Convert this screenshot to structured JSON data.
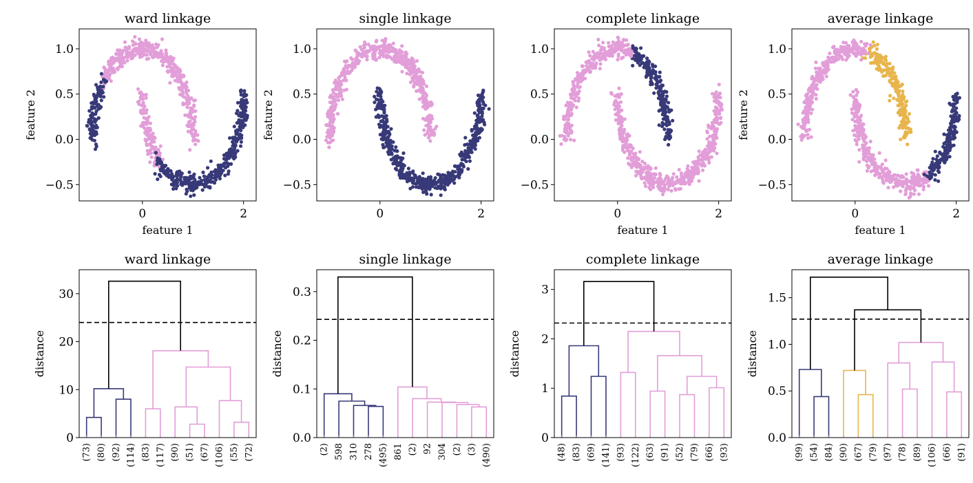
{
  "colors": {
    "navy": "#373978",
    "pink": "#e29ed8",
    "gold": "#e8b54d",
    "black": "#000000"
  },
  "chart_data": [
    {
      "type": "scatter",
      "title": "ward linkage",
      "xlabel": "feature 1",
      "ylabel": "feature 2",
      "xticks": [
        0,
        2
      ],
      "yticks": [
        -0.5,
        0.0,
        0.5,
        1.0
      ],
      "xtick_labels": [
        "0",
        "2"
      ],
      "ytick_labels": [
        "−0.5",
        "0.0",
        "0.5",
        "1.0"
      ],
      "xlim": [
        -1.25,
        2.25
      ],
      "ylim": [
        -0.68,
        1.22
      ],
      "dataset": "two interleaving half-moons",
      "clusters": [
        {
          "color": "pink",
          "segments": [
            {
              "moon": "upper",
              "t": [
                0.0,
                0.78
              ]
            },
            {
              "moon": "lower",
              "t": [
                0.0,
                0.26
              ]
            }
          ]
        },
        {
          "color": "navy",
          "segments": [
            {
              "moon": "upper",
              "t": [
                0.78,
                1.0
              ]
            },
            {
              "moon": "lower",
              "t": [
                0.26,
                1.0
              ]
            }
          ]
        }
      ]
    },
    {
      "type": "scatter",
      "title": "single linkage",
      "xlabel": "",
      "ylabel": "feature 2",
      "xticks": [
        0,
        2
      ],
      "yticks": [
        -0.5,
        0.0,
        0.5,
        1.0
      ],
      "xtick_labels": [
        "0",
        "2"
      ],
      "ytick_labels": [
        "−0.5",
        "0.0",
        "0.5",
        "1.0"
      ],
      "xlim": [
        -1.25,
        2.25
      ],
      "ylim": [
        -0.68,
        1.22
      ],
      "clusters": [
        {
          "color": "pink",
          "segments": [
            {
              "moon": "upper",
              "t": [
                0.0,
                1.0
              ]
            }
          ]
        },
        {
          "color": "navy",
          "segments": [
            {
              "moon": "lower",
              "t": [
                0.0,
                1.0
              ]
            }
          ]
        }
      ]
    },
    {
      "type": "scatter",
      "title": "complete linkage",
      "xlabel": "feature 1",
      "ylabel": "",
      "xticks": [
        0,
        2
      ],
      "yticks": [
        -0.5,
        0.0,
        0.5,
        1.0
      ],
      "xtick_labels": [
        "0",
        "2"
      ],
      "ytick_labels": [
        "−0.5",
        "0.0",
        "0.5",
        "1.0"
      ],
      "xlim": [
        -1.25,
        2.25
      ],
      "ylim": [
        -0.68,
        1.22
      ],
      "clusters": [
        {
          "color": "navy",
          "segments": [
            {
              "moon": "upper",
              "t": [
                0.0,
                0.42
              ]
            }
          ]
        },
        {
          "color": "pink",
          "segments": [
            {
              "moon": "upper",
              "t": [
                0.42,
                1.0
              ]
            },
            {
              "moon": "lower",
              "t": [
                0.0,
                1.0
              ]
            }
          ]
        }
      ]
    },
    {
      "type": "scatter",
      "title": "average linkage",
      "xlabel": "feature 1",
      "ylabel": "feature 2",
      "xticks": [
        0,
        2
      ],
      "yticks": [
        -0.5,
        0.0,
        0.5,
        1.0
      ],
      "xtick_labels": [
        "0",
        "2"
      ],
      "ytick_labels": [
        "−0.5",
        "0.0",
        "0.5",
        "1.0"
      ],
      "xlim": [
        -1.25,
        2.25
      ],
      "ylim": [
        -0.68,
        1.22
      ],
      "clusters": [
        {
          "color": "gold",
          "segments": [
            {
              "moon": "upper",
              "t": [
                0.0,
                0.43
              ]
            }
          ]
        },
        {
          "color": "pink",
          "segments": [
            {
              "moon": "upper",
              "t": [
                0.43,
                1.0
              ]
            },
            {
              "moon": "lower",
              "t": [
                0.0,
                0.65
              ]
            }
          ]
        },
        {
          "color": "navy",
          "segments": [
            {
              "moon": "lower",
              "t": [
                0.65,
                1.0
              ]
            }
          ]
        }
      ]
    },
    {
      "type": "dendrogram",
      "title": "ward linkage",
      "ylabel": "distance",
      "ylim": [
        0,
        35
      ],
      "yticks": [
        0,
        10,
        20,
        30
      ],
      "ytick_labels": [
        "0",
        "10",
        "20",
        "30"
      ],
      "cut_height": 24,
      "leaf_labels": [
        "(73)",
        "(80)",
        "(92)",
        "(114)",
        "(83)",
        "(117)",
        "(90)",
        "(51)",
        "(67)",
        "(106)",
        "(55)",
        "(72)"
      ],
      "links": [
        {
          "a": 0,
          "b": 1,
          "h": 4.2,
          "color": "navy"
        },
        {
          "a": 2,
          "b": 3,
          "h": 8.0,
          "color": "navy"
        },
        {
          "a": "L0",
          "b": "L1",
          "h": 10.2,
          "color": "navy"
        },
        {
          "a": 4,
          "b": 5,
          "h": 6.0,
          "color": "pink"
        },
        {
          "a": 7,
          "b": 8,
          "h": 2.8,
          "color": "pink"
        },
        {
          "a": 6,
          "b": "L4",
          "h": 6.4,
          "color": "pink"
        },
        {
          "a": 10,
          "b": 11,
          "h": 3.2,
          "color": "pink"
        },
        {
          "a": 9,
          "b": "L6",
          "h": 7.7,
          "color": "pink"
        },
        {
          "a": "L5",
          "b": "L7",
          "h": 14.7,
          "color": "pink"
        },
        {
          "a": "L3",
          "b": "L8",
          "h": 18.1,
          "color": "pink"
        },
        {
          "a": "L2",
          "b": "L9",
          "h": 32.6,
          "color": "black"
        }
      ]
    },
    {
      "type": "dendrogram",
      "title": "single linkage",
      "ylabel": "distance",
      "ylim": [
        0,
        0.345
      ],
      "yticks": [
        0,
        0.1,
        0.2,
        0.3
      ],
      "ytick_labels": [
        "0.0",
        "0.1",
        "0.2",
        "0.3"
      ],
      "cut_height": 0.243,
      "leaf_labels": [
        "(2)",
        "598",
        "310",
        "278",
        "(495)",
        "861",
        "(2)",
        "92",
        "304",
        "(2)",
        "(3)",
        "(490)"
      ],
      "links": [
        {
          "a": 3,
          "b": 4,
          "h": 0.064,
          "color": "navy"
        },
        {
          "a": 2,
          "b": "L0",
          "h": 0.066,
          "color": "navy"
        },
        {
          "a": 1,
          "b": "L1",
          "h": 0.075,
          "color": "navy"
        },
        {
          "a": 0,
          "b": "L2",
          "h": 0.09,
          "color": "navy"
        },
        {
          "a": 10,
          "b": 11,
          "h": 0.063,
          "color": "pink"
        },
        {
          "a": 9,
          "b": "L4",
          "h": 0.068,
          "color": "pink"
        },
        {
          "a": 8,
          "b": "L5",
          "h": 0.072,
          "color": "pink"
        },
        {
          "a": 7,
          "b": "L6",
          "h": 0.073,
          "color": "pink"
        },
        {
          "a": 6,
          "b": "L7",
          "h": 0.08,
          "color": "pink"
        },
        {
          "a": 5,
          "b": "L8",
          "h": 0.104,
          "color": "pink"
        },
        {
          "a": "L3",
          "b": "L9",
          "h": 0.33,
          "color": "black"
        }
      ]
    },
    {
      "type": "dendrogram",
      "title": "complete linkage",
      "ylabel": "distance",
      "ylim": [
        0,
        3.4
      ],
      "yticks": [
        0,
        1,
        2,
        3
      ],
      "ytick_labels": [
        "0",
        "1",
        "2",
        "3"
      ],
      "cut_height": 2.32,
      "leaf_labels": [
        "(48)",
        "(83)",
        "(69)",
        "(141)",
        "(93)",
        "(122)",
        "(63)",
        "(91)",
        "(52)",
        "(79)",
        "(66)",
        "(93)"
      ],
      "links": [
        {
          "a": 0,
          "b": 1,
          "h": 0.84,
          "color": "navy"
        },
        {
          "a": 2,
          "b": 3,
          "h": 1.24,
          "color": "navy"
        },
        {
          "a": "L0",
          "b": "L1",
          "h": 1.86,
          "color": "navy"
        },
        {
          "a": 4,
          "b": 5,
          "h": 1.32,
          "color": "pink"
        },
        {
          "a": 6,
          "b": 7,
          "h": 0.94,
          "color": "pink"
        },
        {
          "a": 8,
          "b": 9,
          "h": 0.87,
          "color": "pink"
        },
        {
          "a": 10,
          "b": 11,
          "h": 1.01,
          "color": "pink"
        },
        {
          "a": "L5",
          "b": "L6",
          "h": 1.24,
          "color": "pink"
        },
        {
          "a": "L4",
          "b": "L7",
          "h": 1.66,
          "color": "pink"
        },
        {
          "a": "L3",
          "b": "L8",
          "h": 2.15,
          "color": "pink"
        },
        {
          "a": "L2",
          "b": "L9",
          "h": 3.16,
          "color": "black"
        }
      ]
    },
    {
      "type": "dendrogram",
      "title": "average linkage",
      "ylabel": "distance",
      "ylim": [
        0,
        1.8
      ],
      "yticks": [
        0,
        0.5,
        1.0,
        1.5
      ],
      "ytick_labels": [
        "0.0",
        "0.5",
        "1.0",
        "1.5"
      ],
      "cut_height": 1.27,
      "leaf_labels": [
        "(99)",
        "(54)",
        "(84)",
        "(90)",
        "(67)",
        "(79)",
        "(97)",
        "(78)",
        "(89)",
        "(106)",
        "(66)",
        "(91)"
      ],
      "links": [
        {
          "a": 1,
          "b": 2,
          "h": 0.44,
          "color": "navy"
        },
        {
          "a": 0,
          "b": "L0",
          "h": 0.73,
          "color": "navy"
        },
        {
          "a": 4,
          "b": 5,
          "h": 0.46,
          "color": "gold"
        },
        {
          "a": 3,
          "b": "L2",
          "h": 0.72,
          "color": "gold"
        },
        {
          "a": 7,
          "b": 8,
          "h": 0.52,
          "color": "pink"
        },
        {
          "a": 6,
          "b": "L4",
          "h": 0.8,
          "color": "pink"
        },
        {
          "a": 10,
          "b": 11,
          "h": 0.49,
          "color": "pink"
        },
        {
          "a": 9,
          "b": "L6",
          "h": 0.81,
          "color": "pink"
        },
        {
          "a": "L5",
          "b": "L7",
          "h": 1.02,
          "color": "pink"
        },
        {
          "a": "L3",
          "b": "L8",
          "h": 1.37,
          "color": "black"
        },
        {
          "a": "L1",
          "b": "L9",
          "h": 1.72,
          "color": "black"
        }
      ]
    }
  ]
}
